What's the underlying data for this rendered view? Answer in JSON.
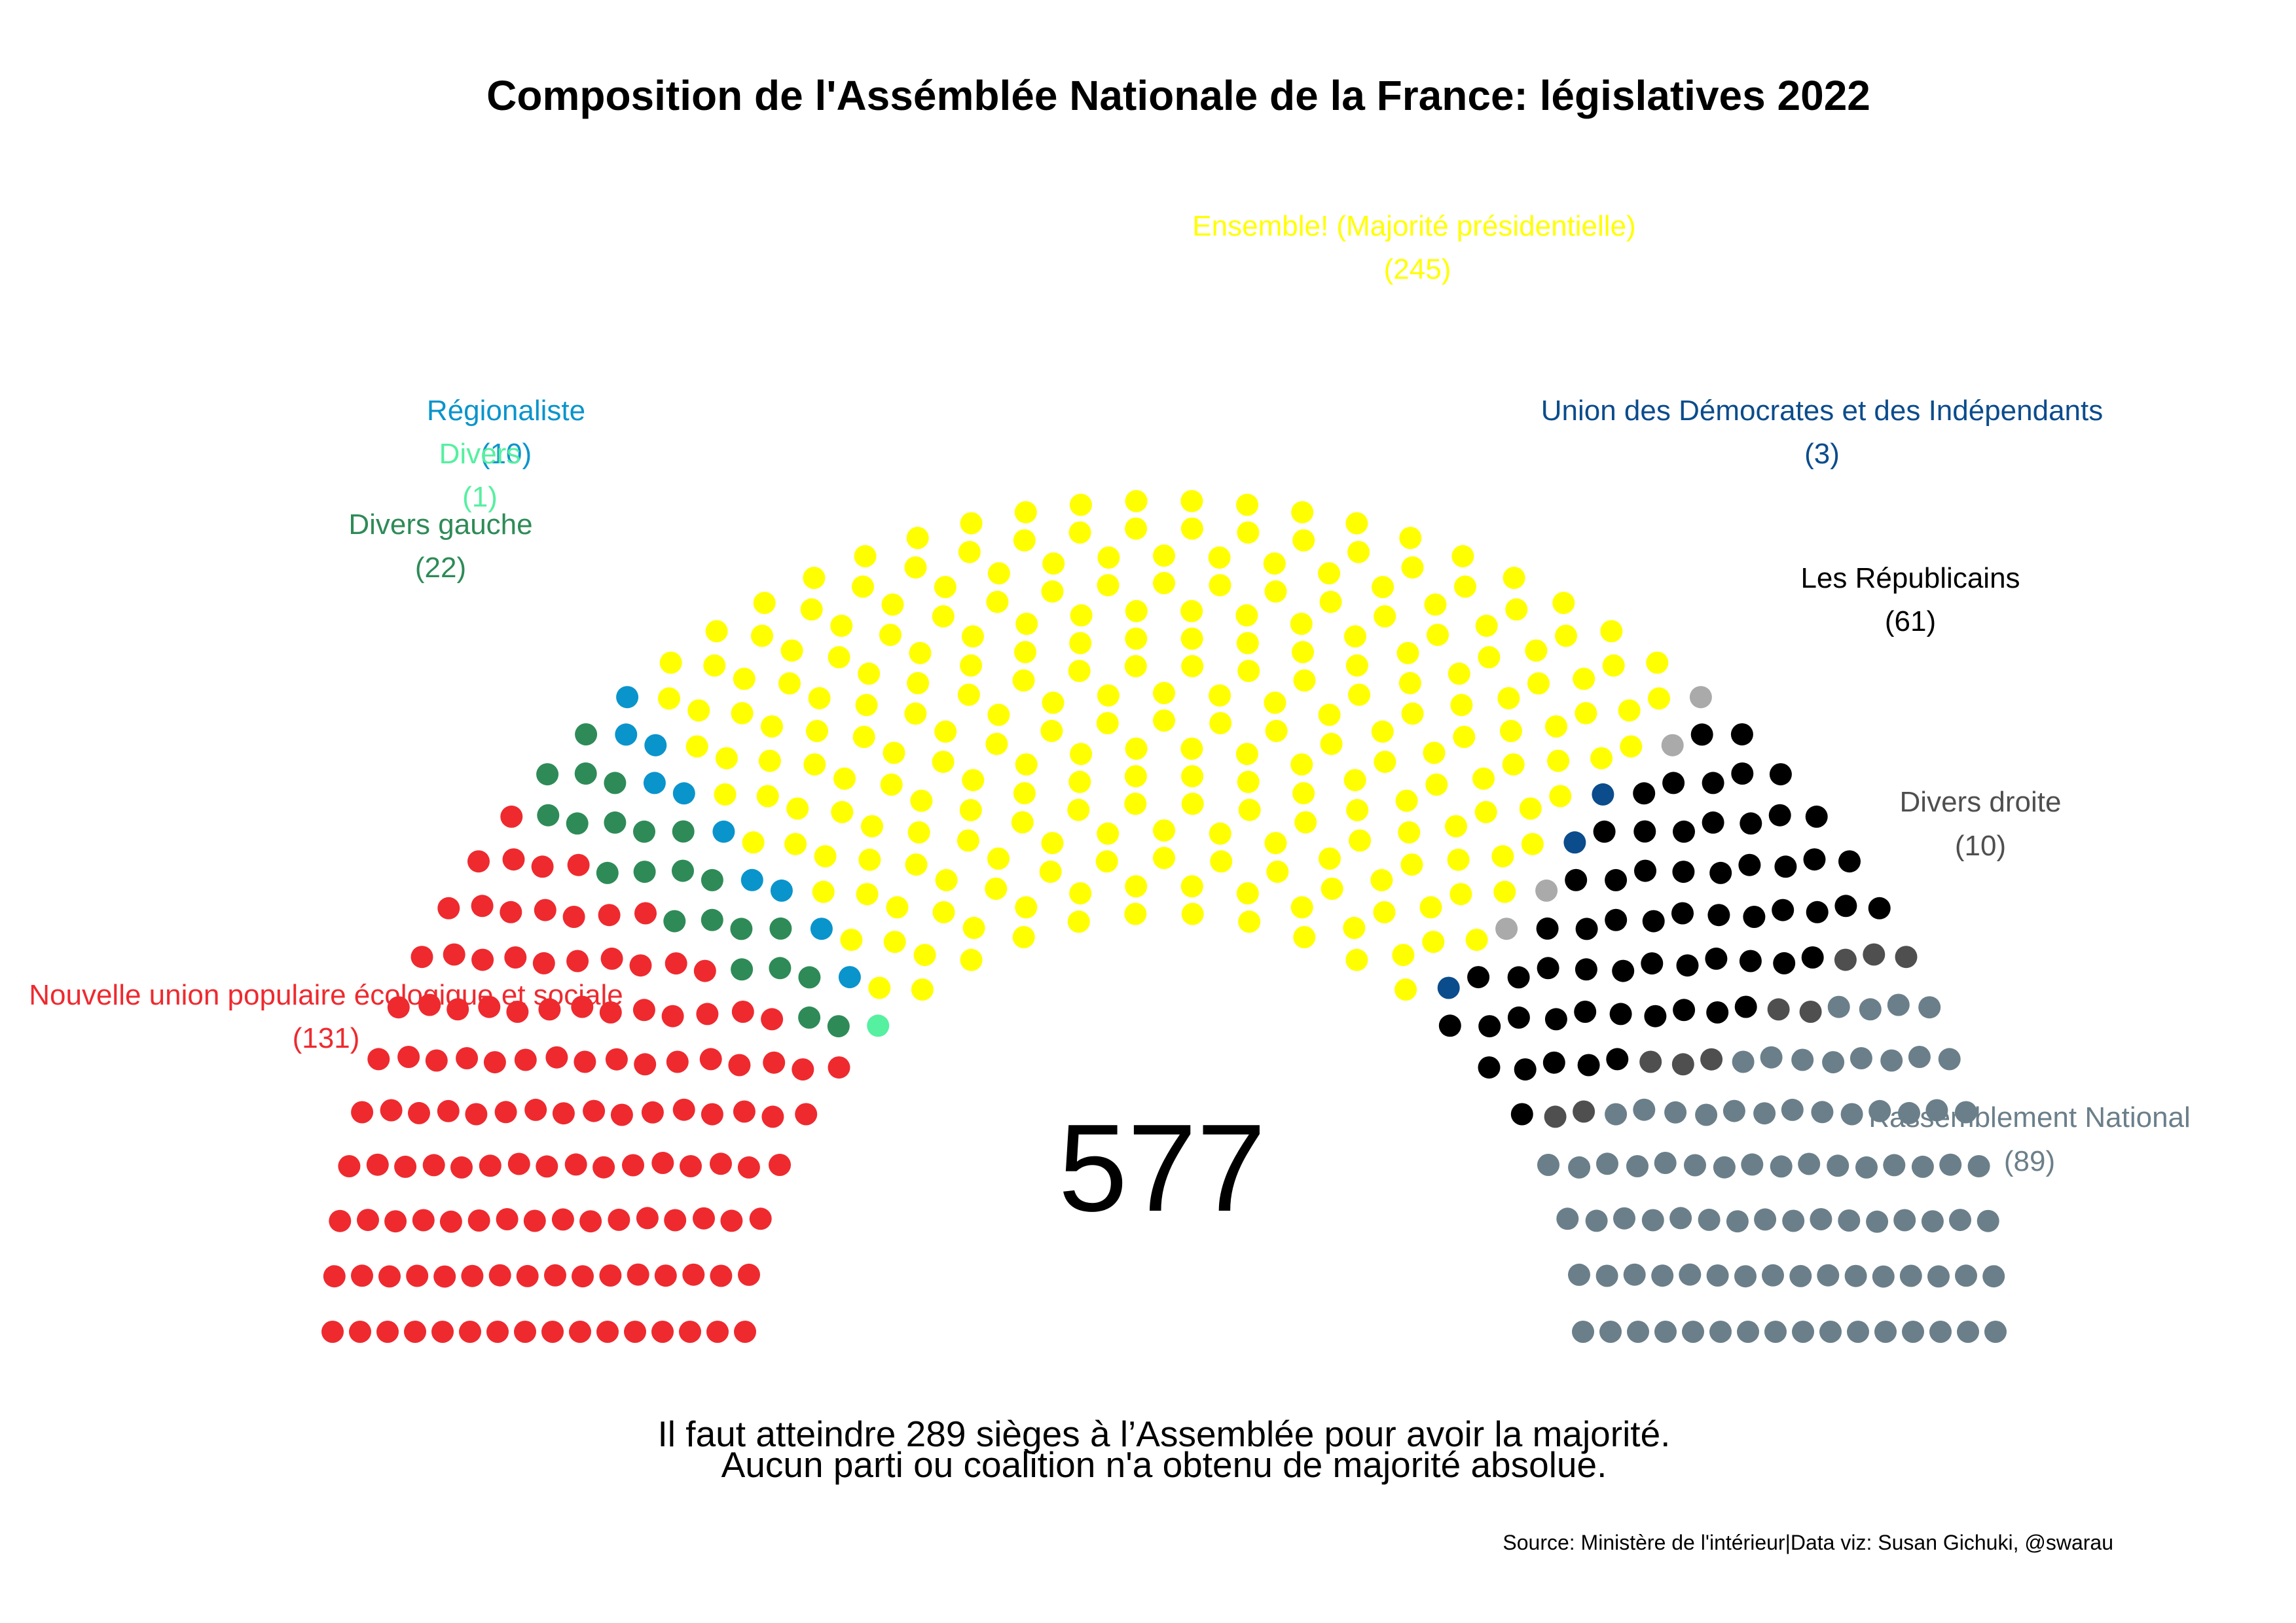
{
  "chart_data": {
    "type": "parliament",
    "title": "Composition de l'Assémblée Nationale de la France: législatives 2022",
    "total_seats": 577,
    "total_label": "577",
    "majority_note_1": "Il faut atteindre 289 sièges à l’Assemblée pour avoir la majorité.",
    "majority_note_2": "Aucun parti ou coalition n'a obtenu de majorité absolue.",
    "source": "Source: Ministère de l'intérieur|Data viz: Susan Gichuki, @swarau",
    "parties": [
      {
        "name": "Nouvelle union populaire écologique et sociale",
        "seats": 131,
        "count_label": "(131)",
        "color": "#EE2A2F"
      },
      {
        "name": "Divers gauche",
        "seats": 22,
        "count_label": "(22)",
        "color": "#2E8B57"
      },
      {
        "name": "Divers",
        "seats": 1,
        "count_label": "(1)",
        "color": "#55F0A0"
      },
      {
        "name": "Régionaliste",
        "seats": 10,
        "count_label": "(10)",
        "color": "#0A94CC"
      },
      {
        "name": "Ensemble! (Majorité présidentielle)",
        "seats": 245,
        "count_label": "(245)",
        "color": "#FFFF00"
      },
      {
        "name": "Union des Démocrates et des Indépendants",
        "seats": 3,
        "count_label": "(3)",
        "color": "#0B4C8C"
      },
      {
        "name": "",
        "seats": 4,
        "count_label": "",
        "color": "#AAAAAA"
      },
      {
        "name": "Les Républicains",
        "seats": 61,
        "count_label": "(61)",
        "color": "#000000"
      },
      {
        "name": "Divers droite",
        "seats": 10,
        "count_label": "(10)",
        "color": "#4F4F4F"
      },
      {
        "name": "Rassemblement National",
        "seats": 89,
        "count_label": "(89)",
        "color": "#6B7F8A"
      }
    ]
  }
}
